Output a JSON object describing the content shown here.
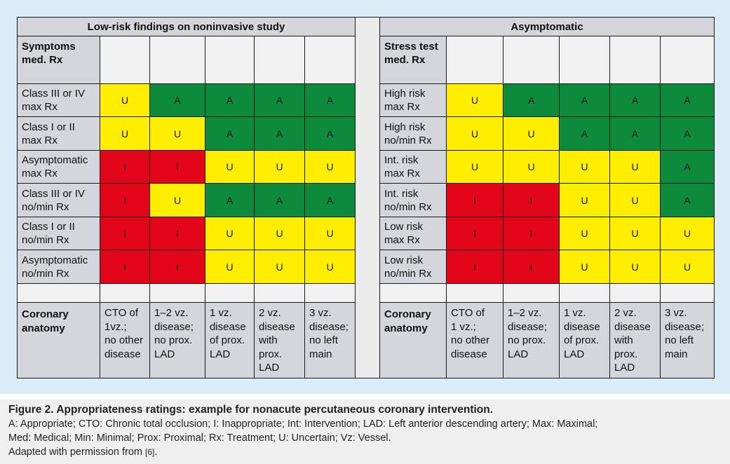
{
  "left_header": "Low-risk findings on noninvasive study",
  "right_header": "Asymptomatic",
  "left_corner": "Symptoms med. Rx",
  "right_corner": "Stress test med. Rx",
  "left_rows": [
    [
      "Class III or IV",
      "max Rx"
    ],
    [
      "Class I or II",
      "max Rx"
    ],
    [
      "Asymptomatic",
      "max Rx"
    ],
    [
      "Class III or IV",
      "no/min Rx"
    ],
    [
      "Class I or II",
      "no/min Rx"
    ],
    [
      "Asymptomatic",
      "no/min Rx"
    ]
  ],
  "right_rows": [
    [
      "High risk",
      "max Rx"
    ],
    [
      "High risk",
      "no/min Rx"
    ],
    [
      "Int. risk",
      "max Rx"
    ],
    [
      "Int. risk",
      "no/min Rx"
    ],
    [
      "Low risk",
      "max Rx"
    ],
    [
      "Low risk",
      "no/min Rx"
    ]
  ],
  "left_ratings": [
    [
      "U",
      "A",
      "A",
      "A",
      "A"
    ],
    [
      "U",
      "U",
      "A",
      "A",
      "A"
    ],
    [
      "I",
      "I",
      "U",
      "U",
      "U"
    ],
    [
      "I",
      "U",
      "A",
      "A",
      "A"
    ],
    [
      "I",
      "I",
      "U",
      "U",
      "U"
    ],
    [
      "I",
      "I",
      "U",
      "U",
      "U"
    ]
  ],
  "right_ratings": [
    [
      "U",
      "A",
      "A",
      "A",
      "A"
    ],
    [
      "U",
      "U",
      "A",
      "A",
      "A"
    ],
    [
      "U",
      "U",
      "U",
      "U",
      "A"
    ],
    [
      "I",
      "I",
      "U",
      "U",
      "A"
    ],
    [
      "I",
      "I",
      "U",
      "U",
      "U"
    ],
    [
      "I",
      "I",
      "U",
      "U",
      "U"
    ]
  ],
  "anatomy_label": "Coronary anatomy",
  "left_anatomy": [
    [
      "CTO of",
      "1vz.;",
      "no other",
      "disease"
    ],
    [
      "1–2 vz.",
      "disease;",
      "no prox.",
      "LAD"
    ],
    [
      "1 vz.",
      "disease",
      "of prox.",
      "LAD"
    ],
    [
      "2 vz.",
      "disease",
      "with",
      "prox.",
      "LAD"
    ],
    [
      "3 vz.",
      "disease;",
      "no left",
      "main"
    ]
  ],
  "right_anatomy": [
    [
      "CTO of",
      "1 vz.;",
      "no other",
      "disease"
    ],
    [
      "1–2 vz.",
      "disease;",
      "no prox.",
      "LAD"
    ],
    [
      "1 vz.",
      "disease",
      "of prox.",
      "LAD"
    ],
    [
      "2 vz.",
      "disease",
      "with",
      "prox.",
      "LAD"
    ],
    [
      "3 vz.",
      "disease;",
      "no left",
      "main"
    ]
  ],
  "colors": {
    "A": "#0d8a3b",
    "U": "#ffee00",
    "I": "#e3061b"
  },
  "caption": {
    "title": "Figure 2. Appropriateness ratings: example for nonacute percutaneous coronary intervention.",
    "line1": "A: Appropriate; CTO: Chronic total occlusion; I: Inappropriate; Int: Intervention; LAD: Left anterior descending artery; Max: Maximal;",
    "line2": "Med: Medical; Min: Minimal; Prox: Proximal; Rx: Treatment; U: Uncertain; Vz: Vessel.",
    "line3_prefix": "Adapted with permission from ",
    "reference": "[6]",
    "line3_suffix": "."
  }
}
